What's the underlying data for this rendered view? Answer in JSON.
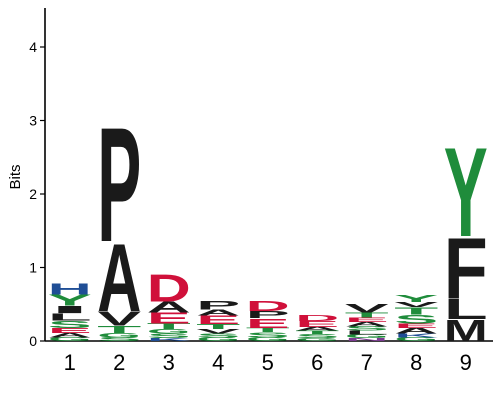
{
  "chart_data": {
    "type": "sequence-logo",
    "ylabel": "Bits",
    "ylim": [
      0,
      4.5
    ],
    "yticks": [
      "0",
      "1",
      "2",
      "3",
      "4"
    ],
    "categories": [
      "1",
      "2",
      "3",
      "4",
      "5",
      "6",
      "7",
      "8",
      "9"
    ],
    "colors": {
      "hydrophobic": "#1a1a1a",
      "acidic": "#d0103a",
      "polar": "#1f8c3b",
      "basic": "#1f4e96",
      "amide": "#7b3a90"
    },
    "letter_colors": {
      "A": "#1a1a1a",
      "V": "#1a1a1a",
      "L": "#1a1a1a",
      "I": "#1a1a1a",
      "P": "#1a1a1a",
      "F": "#1a1a1a",
      "M": "#1a1a1a",
      "W": "#1a1a1a",
      "D": "#d0103a",
      "E": "#d0103a",
      "S": "#1f8c3b",
      "T": "#1f8c3b",
      "Y": "#1f8c3b",
      "G": "#1f8c3b",
      "C": "#1f8c3b",
      "H": "#1f4e96",
      "K": "#1f4e96",
      "R": "#1f4e96",
      "N": "#7b3a90",
      "Q": "#7b3a90"
    },
    "positions": [
      {
        "label": "1",
        "stack": [
          {
            "letter": "G",
            "height": 0.05
          },
          {
            "letter": "A",
            "height": 0.06
          },
          {
            "letter": "E",
            "height": 0.07
          },
          {
            "letter": "S",
            "height": 0.1
          },
          {
            "letter": "L",
            "height": 0.1
          },
          {
            "letter": "I",
            "height": 0.1
          },
          {
            "letter": "Y",
            "height": 0.15
          },
          {
            "letter": "H",
            "height": 0.15
          }
        ]
      },
      {
        "label": "2",
        "stack": [
          {
            "letter": "S",
            "height": 0.05
          },
          {
            "letter": "G",
            "height": 0.06
          },
          {
            "letter": "T",
            "height": 0.1
          },
          {
            "letter": "V",
            "height": 0.2
          },
          {
            "letter": "A",
            "height": 0.95
          },
          {
            "letter": "P",
            "height": 1.6
          }
        ]
      },
      {
        "label": "3",
        "stack": [
          {
            "letter": "K",
            "height": 0.04
          },
          {
            "letter": "S",
            "height": 0.06
          },
          {
            "letter": "G",
            "height": 0.06
          },
          {
            "letter": "T",
            "height": 0.08
          },
          {
            "letter": "E",
            "height": 0.15
          },
          {
            "letter": "A",
            "height": 0.15
          },
          {
            "letter": "D",
            "height": 0.38
          }
        ]
      },
      {
        "label": "4",
        "stack": [
          {
            "letter": "G",
            "height": 0.05
          },
          {
            "letter": "S",
            "height": 0.05
          },
          {
            "letter": "V",
            "height": 0.06
          },
          {
            "letter": "T",
            "height": 0.07
          },
          {
            "letter": "E",
            "height": 0.12
          },
          {
            "letter": "A",
            "height": 0.08
          },
          {
            "letter": "P",
            "height": 0.12
          }
        ]
      },
      {
        "label": "5",
        "stack": [
          {
            "letter": "G",
            "height": 0.05
          },
          {
            "letter": "S",
            "height": 0.07
          },
          {
            "letter": "T",
            "height": 0.06
          },
          {
            "letter": "E",
            "height": 0.13
          },
          {
            "letter": "P",
            "height": 0.1
          },
          {
            "letter": "D",
            "height": 0.14
          }
        ]
      },
      {
        "label": "6",
        "stack": [
          {
            "letter": "G",
            "height": 0.04
          },
          {
            "letter": "S",
            "height": 0.05
          },
          {
            "letter": "T",
            "height": 0.05
          },
          {
            "letter": "A",
            "height": 0.05
          },
          {
            "letter": "E",
            "height": 0.08
          },
          {
            "letter": "D",
            "height": 0.08
          }
        ]
      },
      {
        "label": "7",
        "stack": [
          {
            "letter": "N",
            "height": 0.04
          },
          {
            "letter": "G",
            "height": 0.05
          },
          {
            "letter": "L",
            "height": 0.05
          },
          {
            "letter": "S",
            "height": 0.06
          },
          {
            "letter": "A",
            "height": 0.06
          },
          {
            "letter": "E",
            "height": 0.06
          },
          {
            "letter": "T",
            "height": 0.07
          },
          {
            "letter": "V",
            "height": 0.12
          }
        ]
      },
      {
        "label": "8",
        "stack": [
          {
            "letter": "G",
            "height": 0.05
          },
          {
            "letter": "K",
            "height": 0.05
          },
          {
            "letter": "A",
            "height": 0.08
          },
          {
            "letter": "E",
            "height": 0.06
          },
          {
            "letter": "S",
            "height": 0.12
          },
          {
            "letter": "T",
            "height": 0.1
          },
          {
            "letter": "V",
            "height": 0.07
          },
          {
            "letter": "Y",
            "height": 0.1
          }
        ]
      },
      {
        "label": "9",
        "stack": [
          {
            "letter": "M",
            "height": 0.3
          },
          {
            "letter": "L",
            "height": 0.28
          },
          {
            "letter": "F",
            "height": 0.85
          },
          {
            "letter": "Y",
            "height": 1.25
          }
        ]
      }
    ]
  }
}
